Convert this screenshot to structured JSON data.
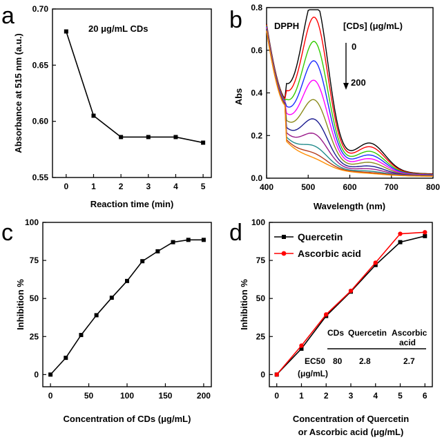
{
  "chart_data": [
    {
      "id": "a",
      "type": "line",
      "panel_letter": "a",
      "xlabel": "Reaction time (min)",
      "ylabel": "Absorbance at 515 nm (a.u.)",
      "annotation": "20 μg/mL CDs",
      "xlim": [
        -0.5,
        5.3
      ],
      "ylim": [
        0.55,
        0.7
      ],
      "x_ticks": [
        0,
        1,
        2,
        3,
        4,
        5
      ],
      "y_ticks": [
        0.55,
        0.6,
        0.65,
        0.7
      ],
      "y_tick_labels": [
        "0.55",
        "0.60",
        "0.65",
        "0.70"
      ],
      "marker": "square",
      "grid": false,
      "series": [
        {
          "x": [
            0,
            1,
            2,
            3,
            4,
            5
          ],
          "y": [
            0.68,
            0.605,
            0.586,
            0.586,
            0.586,
            0.581
          ],
          "color": "#000000"
        }
      ]
    },
    {
      "id": "b",
      "type": "line",
      "panel_letter": "b",
      "xlabel": "Wavelength (nm)",
      "ylabel": "Abs",
      "annotation_left": "DPPH",
      "annotation_right": "[CDs] (μg/mL)",
      "arrow_top_label": "0",
      "arrow_bottom_label": "200",
      "xlim": [
        400,
        800
      ],
      "ylim": [
        0.0,
        0.8
      ],
      "x_ticks": [
        400,
        500,
        600,
        700,
        800
      ],
      "y_ticks": [
        0.0,
        0.2,
        0.4,
        0.6,
        0.8
      ],
      "y_tick_labels": [
        "0.0",
        "0.2",
        "0.4",
        "0.6",
        "0.8"
      ],
      "grid": false,
      "spectra_peak_values": [
        0.68,
        0.6,
        0.5,
        0.42,
        0.34,
        0.26,
        0.18,
        0.12,
        0.07,
        0.04,
        0.02
      ],
      "series_colors": [
        "#000000",
        "#ff0000",
        "#33cc00",
        "#1a2bff",
        "#ff00ff",
        "#8a8a1a",
        "#1a1a8f",
        "#9a1a8a",
        "#1f8a8a",
        "#b33a1a",
        "#ff8c00"
      ]
    },
    {
      "id": "c",
      "type": "line",
      "panel_letter": "c",
      "xlabel": "Concentration of CDs (μg/mL)",
      "ylabel": "Inhibition %",
      "xlim": [
        -10,
        210
      ],
      "ylim": [
        -8,
        100
      ],
      "x_ticks": [
        0,
        50,
        100,
        150,
        200
      ],
      "y_ticks": [
        0,
        25,
        50,
        75,
        100
      ],
      "marker": "square",
      "grid": false,
      "series": [
        {
          "x": [
            0,
            20,
            40,
            60,
            80,
            100,
            120,
            140,
            160,
            180,
            200
          ],
          "y": [
            0,
            11,
            26,
            39,
            50.5,
            61.5,
            74.5,
            81,
            87,
            88.5,
            88.5
          ],
          "color": "#000000"
        }
      ]
    },
    {
      "id": "d",
      "type": "line",
      "panel_letter": "d",
      "xlabel": "Concentration of Quercetin",
      "xlabel_line2": "or Ascorbic acid (μg/mL)",
      "ylabel": "Inhibition %",
      "xlim": [
        -0.3,
        6.3
      ],
      "ylim": [
        -8,
        100
      ],
      "x_ticks": [
        0,
        1,
        2,
        3,
        4,
        5,
        6
      ],
      "y_ticks": [
        0,
        25,
        50,
        75,
        100
      ],
      "legend_position": "top-left",
      "grid": false,
      "series": [
        {
          "name": "Quercetin",
          "x": [
            0,
            1,
            2,
            3,
            4,
            5,
            6
          ],
          "y": [
            0,
            17,
            38.5,
            54.5,
            72,
            87,
            91
          ],
          "color": "#000000",
          "marker": "square"
        },
        {
          "name": "Ascorbic acid",
          "x": [
            0,
            1,
            2,
            3,
            4,
            5,
            6
          ],
          "y": [
            0,
            19,
            39.5,
            55,
            73.5,
            92.5,
            93.5
          ],
          "color": "#ff0000",
          "marker": "circle"
        }
      ],
      "table": {
        "headers": [
          "CDs",
          "Quercetin",
          "Ascorbic",
          "acid"
        ],
        "row_label_1": "EC50",
        "row_label_2": "(μg/mL)",
        "values": [
          "80",
          "2.8",
          "2.7"
        ]
      }
    }
  ]
}
